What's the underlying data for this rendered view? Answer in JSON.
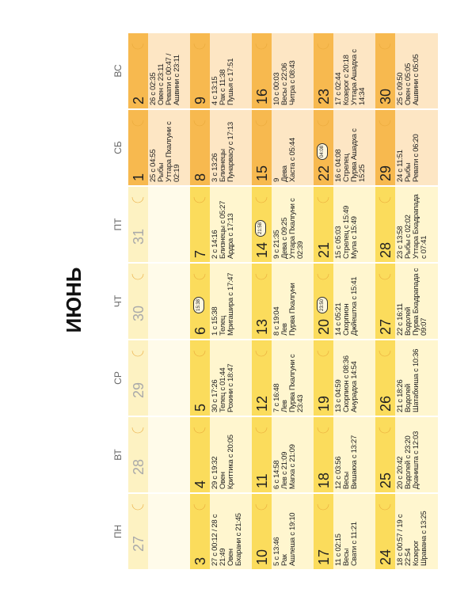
{
  "title": "ИЮНЬ",
  "weekdays": [
    "ПН",
    "ВТ",
    "СР",
    "ЧТ",
    "ПТ",
    "СБ",
    "ВС"
  ],
  "weeks": [
    [
      {
        "day": "27",
        "other_month": true,
        "lines": []
      },
      {
        "day": "28",
        "other_month": true,
        "lines": []
      },
      {
        "day": "29",
        "other_month": true,
        "lines": []
      },
      {
        "day": "30",
        "other_month": true,
        "lines": []
      },
      {
        "day": "31",
        "other_month": true,
        "lines": []
      },
      {
        "day": "1",
        "lines": [
          "25 с 04:55",
          "Рыбы",
          "Уттара Пхалгуни с 02:19"
        ]
      },
      {
        "day": "2",
        "lines": [
          "26 с 02:35",
          "Овен с 23:11",
          "Ревати с 00:47 / Ашвини с 23:11"
        ]
      }
    ],
    [
      {
        "day": "3",
        "lines": [
          "27 с 00:12 / 28 с 21:49",
          "Овен",
          "Бхарани с 21:45"
        ]
      },
      {
        "day": "4",
        "lines": [
          "29 с 19:32",
          "Овен",
          "Криттика с 20:05"
        ]
      },
      {
        "day": "5",
        "lines": [
          "30 с 17:26",
          "Телец с 01:44",
          "Рохини с 18:47"
        ]
      },
      {
        "day": "6",
        "badge": "15:38",
        "lines": [
          "1 с 15:38",
          "Телец",
          "Мригашира с 17:47"
        ]
      },
      {
        "day": "7",
        "lines": [
          "2 с 14:16",
          "Близнецы с 05:27",
          "Ардра с 17:13"
        ]
      },
      {
        "day": "8",
        "lines": [
          "3 с 13:26",
          "Близнецы",
          "Пунарвасу с 17:13"
        ]
      },
      {
        "day": "9",
        "lines": [
          "4 с 13:15",
          "Рак с 11:38",
          "Пушья с 17:51"
        ]
      }
    ],
    [
      {
        "day": "10",
        "lines": [
          "5 с 13:46",
          "Рак",
          "Ашлеша с 19:10"
        ]
      },
      {
        "day": "11",
        "lines": [
          "6 с 14:58",
          "Лев с 21:09",
          "Магха с 21:09"
        ]
      },
      {
        "day": "12",
        "lines": [
          "7 с 16:48",
          "Лев",
          "Пурва Пхалгуни с 23:43"
        ]
      },
      {
        "day": "13",
        "lines": [
          "8 с 19:04",
          "Лев",
          "Пурва Пхалгуни"
        ]
      },
      {
        "day": "14",
        "badge": "21:58",
        "lines": [
          "9 с 21:35",
          "Дева с 09:25",
          "Уттара Пхалгуни с 02:39"
        ]
      },
      {
        "day": "15",
        "lines": [
          "9",
          "Дева",
          "Хаста с 05:44"
        ]
      },
      {
        "day": "16",
        "lines": [
          "10 с 00:03",
          "Весы с 22:06",
          "Читра с 08:43"
        ]
      }
    ],
    [
      {
        "day": "17",
        "lines": [
          "11 с 02:15",
          "Весы",
          "Свати с 11:21"
        ]
      },
      {
        "day": "18",
        "lines": [
          "12 с 03:56",
          "Весы",
          "Вишакха с 13:27"
        ]
      },
      {
        "day": "19",
        "lines": [
          "13 с 04:59",
          "Скорпион с 08:36",
          "Анурадха 14:54"
        ]
      },
      {
        "day": "20",
        "badge": "23:50",
        "lines": [
          "14 с 05:21",
          "Скорпион",
          "Джйештха с 15:41"
        ]
      },
      {
        "day": "21",
        "lines": [
          "15 с 05:03",
          "Стрелец с 15:49",
          "Мула с 15:49"
        ]
      },
      {
        "day": "22",
        "badge": "04:08",
        "lines": [
          "16 с 04:08",
          "Стрелец",
          "Пурва Ашадха с 15:25"
        ]
      },
      {
        "day": "23",
        "lines": [
          "17 с 02:44",
          "Козерог с 20:18",
          "Уттара Ашадха с 14:34"
        ]
      }
    ],
    [
      {
        "day": "24",
        "lines": [
          "18 с 00:57 / 19 с 22:54",
          "Козерог",
          "Шравана с 13:25"
        ]
      },
      {
        "day": "25",
        "lines": [
          "20 с 20:42",
          "Водолей с 23:20",
          "Дханишта с 12:03"
        ]
      },
      {
        "day": "26",
        "lines": [
          "21 с 18:26",
          "Водолей",
          "Шатабхиша с 10:36"
        ]
      },
      {
        "day": "27",
        "lines": [
          "22 с 16:11",
          "Водолей",
          "Пурва Бхадрапада с 09:07"
        ]
      },
      {
        "day": "28",
        "lines": [
          "23 с 13:58",
          "Рыбы с 02:02",
          "Уттара Бхадрапада с 07:41"
        ]
      },
      {
        "day": "29",
        "lines": [
          "24 с 11:51",
          "Рыбы",
          "Ревати с 06:20"
        ]
      },
      {
        "day": "30",
        "lines": [
          "25 с 09:50",
          "Овен с 05:05",
          "Ашвини с 05:05"
        ]
      }
    ]
  ]
}
